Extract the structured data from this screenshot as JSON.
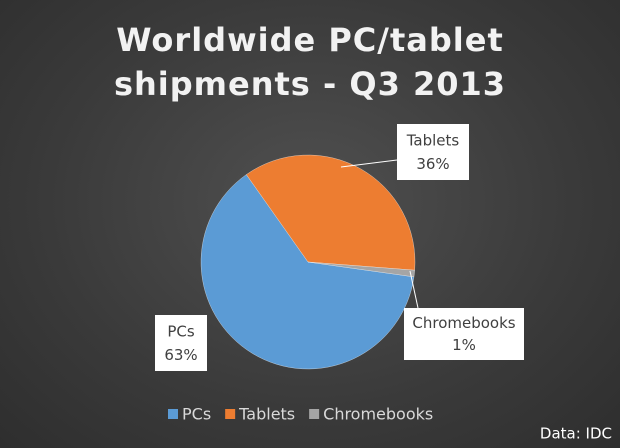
{
  "chart_data": {
    "type": "pie",
    "title": "Worldwide PC/tablet shipments - Q3 2013",
    "categories": [
      "PCs",
      "Tablets",
      "Chromebooks"
    ],
    "values": [
      63,
      36,
      1
    ],
    "value_labels": [
      "63%",
      "36%",
      "1%"
    ],
    "colors": [
      "#5b9bd5",
      "#ed7d31",
      "#a5a5a5"
    ],
    "legend": "bottom",
    "source": "Data: IDC"
  }
}
